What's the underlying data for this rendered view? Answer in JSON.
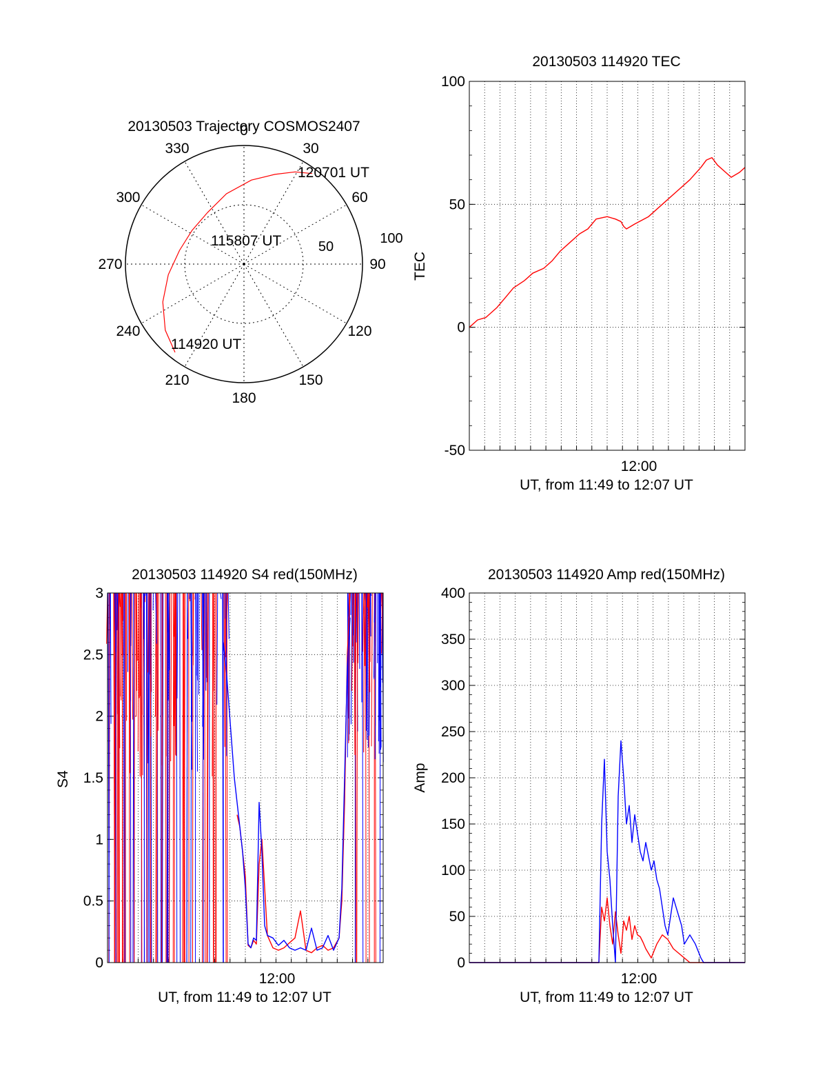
{
  "chart_data": [
    {
      "id": "polar",
      "type": "polar",
      "title": "20130503 Trajectory COSMOS2407",
      "azimuth_labels": [
        "0",
        "30",
        "60",
        "90",
        "120",
        "150",
        "180",
        "210",
        "240",
        "270",
        "300",
        "330"
      ],
      "radial_labels": [
        "50",
        "100"
      ],
      "start_label": "114920 UT",
      "mid_label": "115807 UT",
      "end_label": "120701 UT",
      "track_color": "#ff0000",
      "trajectory": [
        {
          "az": 218,
          "el": 5
        },
        {
          "az": 230,
          "el": 12
        },
        {
          "az": 245,
          "el": 22
        },
        {
          "az": 262,
          "el": 32
        },
        {
          "az": 282,
          "el": 40
        },
        {
          "az": 303,
          "el": 43
        },
        {
          "az": 325,
          "el": 42
        },
        {
          "az": 346,
          "el": 35
        },
        {
          "az": 5,
          "el": 26
        },
        {
          "az": 19,
          "el": 18
        },
        {
          "az": 29,
          "el": 10
        },
        {
          "az": 37,
          "el": 4
        }
      ]
    },
    {
      "id": "tec",
      "type": "line",
      "title": "20130503 114920 TEC",
      "ylabel": "TEC",
      "xlabel": "UT, from 11:49 to 12:07 UT",
      "xtick_label": "12:00",
      "ylim": [
        -50,
        100
      ],
      "yticks": [
        "-50",
        "0",
        "50",
        "100"
      ],
      "series": [
        {
          "name": "TEC",
          "color": "#ff0000",
          "x": [
            0,
            0.03,
            0.06,
            0.1,
            0.13,
            0.16,
            0.2,
            0.23,
            0.27,
            0.3,
            0.33,
            0.37,
            0.4,
            0.43,
            0.46,
            0.5,
            0.53,
            0.55,
            0.56,
            0.57,
            0.6,
            0.65,
            0.7,
            0.75,
            0.8,
            0.84,
            0.86,
            0.88,
            0.9,
            0.93,
            0.95,
            0.98,
            1
          ],
          "y": [
            0,
            3,
            4,
            8,
            12,
            16,
            19,
            22,
            24,
            27,
            31,
            35,
            38,
            40,
            44,
            45,
            44,
            43,
            41,
            40,
            42,
            45,
            50,
            55,
            60,
            65,
            68,
            69,
            66,
            63,
            61,
            63,
            65
          ]
        }
      ]
    },
    {
      "id": "s4",
      "type": "line",
      "title": "20130503 114920 S4 red(150MHz)",
      "ylabel": "S4",
      "xlabel": "UT, from 11:49 to 12:07 UT",
      "xtick_label": "12:00",
      "ylim": [
        0,
        3
      ],
      "yticks": [
        "0",
        "0.5",
        "1",
        "1.5",
        "2",
        "2.5",
        "3"
      ],
      "series": [
        {
          "name": "red",
          "color": "#ff0000",
          "x": [
            0.47,
            0.48,
            0.49,
            0.5,
            0.51,
            0.52,
            0.53,
            0.54,
            0.55,
            0.56,
            0.58,
            0.6,
            0.62,
            0.64,
            0.66,
            0.68,
            0.7,
            0.72,
            0.74,
            0.76,
            0.78,
            0.8,
            0.82,
            0.84,
            0.85,
            0.86,
            0.87,
            0.88
          ],
          "y": [
            1.2,
            1.1,
            0.9,
            0.7,
            0.14,
            0.12,
            0.18,
            0.15,
            0.8,
            1.0,
            0.22,
            0.12,
            0.1,
            0.12,
            0.16,
            0.2,
            0.42,
            0.1,
            0.08,
            0.12,
            0.14,
            0.1,
            0.12,
            0.2,
            0.5,
            1.3,
            2.5,
            3
          ]
        },
        {
          "name": "blue",
          "color": "#0000ff",
          "x": [
            0.42,
            0.43,
            0.44,
            0.45,
            0.46,
            0.47,
            0.48,
            0.49,
            0.5,
            0.51,
            0.52,
            0.53,
            0.54,
            0.55,
            0.56,
            0.57,
            0.58,
            0.6,
            0.62,
            0.64,
            0.66,
            0.68,
            0.7,
            0.72,
            0.74,
            0.76,
            0.78,
            0.8,
            0.82,
            0.84,
            0.85,
            0.86,
            0.87,
            0.88
          ],
          "y": [
            2.6,
            2.4,
            2.1,
            1.8,
            1.5,
            1.3,
            1.1,
            0.9,
            0.6,
            0.15,
            0.12,
            0.2,
            0.18,
            1.3,
            0.9,
            0.3,
            0.22,
            0.2,
            0.14,
            0.18,
            0.12,
            0.1,
            0.12,
            0.1,
            0.28,
            0.1,
            0.12,
            0.22,
            0.1,
            0.2,
            0.6,
            1.5,
            2.4,
            2.8
          ]
        }
      ]
    },
    {
      "id": "amp",
      "type": "line",
      "title": "20130503 114920 Amp red(150MHz)",
      "ylabel": "Amp",
      "xlabel": "UT, from 11:49 to 12:07 UT",
      "xtick_label": "12:00",
      "ylim": [
        0,
        400
      ],
      "yticks": [
        "0",
        "50",
        "100",
        "150",
        "200",
        "250",
        "300",
        "350",
        "400"
      ],
      "series": [
        {
          "name": "red",
          "color": "#ff0000",
          "x": [
            0,
            0.47,
            0.48,
            0.49,
            0.5,
            0.51,
            0.52,
            0.53,
            0.54,
            0.55,
            0.56,
            0.57,
            0.58,
            0.59,
            0.6,
            0.61,
            0.62,
            0.63,
            0.64,
            0.65,
            0.66,
            0.68,
            0.7,
            0.72,
            0.74,
            0.76,
            0.78,
            0.8,
            0.82,
            0.84,
            0.85,
            1
          ],
          "y": [
            0,
            0,
            60,
            45,
            70,
            40,
            20,
            55,
            30,
            10,
            45,
            35,
            50,
            25,
            40,
            30,
            28,
            22,
            15,
            10,
            5,
            20,
            30,
            25,
            15,
            10,
            5,
            0,
            0,
            0,
            0,
            0
          ]
        },
        {
          "name": "blue",
          "color": "#0000ff",
          "x": [
            0,
            0.47,
            0.48,
            0.49,
            0.5,
            0.51,
            0.52,
            0.53,
            0.54,
            0.55,
            0.56,
            0.57,
            0.58,
            0.59,
            0.6,
            0.61,
            0.62,
            0.63,
            0.64,
            0.65,
            0.66,
            0.67,
            0.68,
            0.69,
            0.7,
            0.71,
            0.72,
            0.73,
            0.74,
            0.75,
            0.76,
            0.77,
            0.78,
            0.8,
            0.82,
            0.84,
            0.85,
            1
          ],
          "y": [
            0,
            0,
            150,
            220,
            120,
            90,
            40,
            0,
            180,
            240,
            200,
            150,
            170,
            130,
            160,
            140,
            120,
            110,
            130,
            115,
            100,
            110,
            90,
            80,
            60,
            40,
            30,
            50,
            70,
            60,
            50,
            40,
            20,
            30,
            20,
            5,
            0,
            0
          ]
        }
      ]
    }
  ]
}
